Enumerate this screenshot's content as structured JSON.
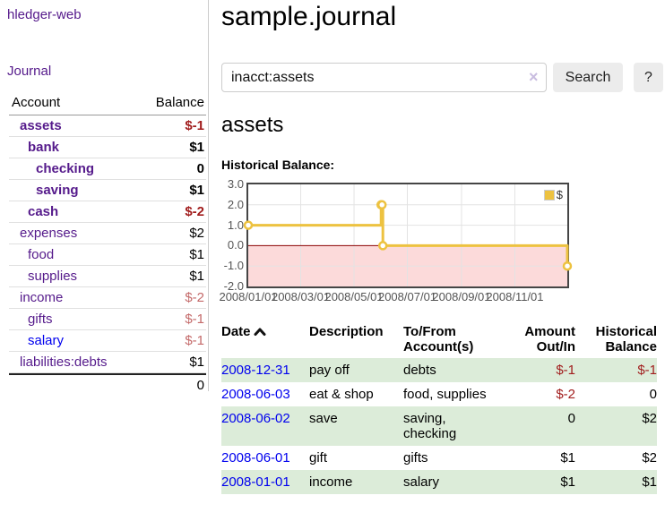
{
  "app": {
    "title": "hledger-web",
    "nav_journal": "Journal"
  },
  "sidebar": {
    "accounts_header": {
      "account": "Account",
      "balance": "Balance"
    },
    "accounts": [
      {
        "name": "assets",
        "balance": "$-1",
        "indent": 1,
        "bold": true
      },
      {
        "name": "bank",
        "balance": "$1",
        "indent": 2,
        "bold": true
      },
      {
        "name": "checking",
        "balance": "0",
        "indent": 3,
        "bold": true
      },
      {
        "name": "saving",
        "balance": "$1",
        "indent": 3,
        "bold": true
      },
      {
        "name": "cash",
        "balance": "$-2",
        "indent": 2,
        "bold": true
      },
      {
        "name": "expenses",
        "balance": "$2",
        "indent": 1,
        "bold": false
      },
      {
        "name": "food",
        "balance": "$1",
        "indent": 2,
        "bold": false
      },
      {
        "name": "supplies",
        "balance": "$1",
        "indent": 2,
        "bold": false
      },
      {
        "name": "income",
        "balance": "$-2",
        "indent": 1,
        "bold": false
      },
      {
        "name": "gifts",
        "balance": "$-1",
        "indent": 2,
        "bold": false
      },
      {
        "name": "salary",
        "balance": "$-1",
        "indent": 2,
        "bold": false,
        "unvisited": true
      },
      {
        "name": "liabilities:debts",
        "balance": "$1",
        "indent": 1,
        "bold": false
      }
    ],
    "total": "0"
  },
  "header": {
    "title": "sample.journal"
  },
  "search": {
    "value": "inacct:assets",
    "clear_icon": "×",
    "button": "Search",
    "help_button": "?"
  },
  "main": {
    "heading": "assets",
    "chart_label": "Historical Balance:"
  },
  "chart_data": {
    "type": "line",
    "step": true,
    "title": "Historical Balance",
    "series": [
      {
        "name": "$",
        "color": "#edc240",
        "points": [
          [
            "2008-01-01",
            1
          ],
          [
            "2008-06-01",
            2
          ],
          [
            "2008-06-02",
            2
          ],
          [
            "2008-06-03",
            0
          ],
          [
            "2008-12-31",
            -1
          ]
        ]
      }
    ],
    "x_ticks": [
      "2008/01/01",
      "2008/03/01",
      "2008/05/01",
      "2008/07/01",
      "2008/09/01",
      "2008/11/01"
    ],
    "y_ticks": [
      "3.0",
      "2.0",
      "1.0",
      "0.0",
      "-1.0",
      "-2.0"
    ],
    "xlim": [
      "2008-01-01",
      "2008-12-31"
    ],
    "ylim": [
      -2,
      3
    ],
    "grid": true,
    "legend_position": "top-right",
    "legend_label": "$",
    "colors": {
      "line": "#edc240",
      "negative_region": "#fcdada",
      "zero_line": "#8b0000",
      "gridline": "#e3e3e3",
      "border": "#454545"
    }
  },
  "register": {
    "headers": [
      {
        "label": "Date",
        "sort": "up"
      },
      {
        "label": "Description"
      },
      {
        "label": "To/From Account(s)"
      },
      {
        "label": "Amount Out/In"
      },
      {
        "label": "Historical Balance"
      }
    ],
    "rows": [
      {
        "date": "2008-12-31",
        "description": "pay off",
        "accounts": "debts",
        "amount": "$-1",
        "balance": "$-1"
      },
      {
        "date": "2008-06-03",
        "description": "eat & shop",
        "accounts": "food, supplies",
        "amount": "$-2",
        "balance": "0"
      },
      {
        "date": "2008-06-02",
        "description": "save",
        "accounts": "saving, checking",
        "amount": "0",
        "balance": "$2"
      },
      {
        "date": "2008-06-01",
        "description": "gift",
        "accounts": "gifts",
        "amount": "$1",
        "balance": "$2"
      },
      {
        "date": "2008-01-01",
        "description": "income",
        "accounts": "salary",
        "amount": "$1",
        "balance": "$1"
      }
    ]
  }
}
